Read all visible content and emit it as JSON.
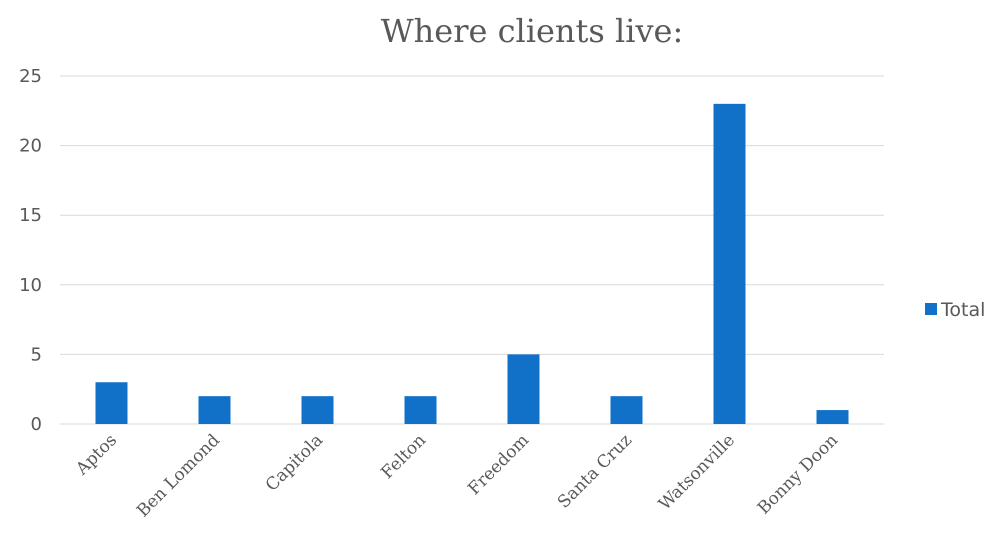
{
  "chart_data": {
    "type": "bar",
    "title": "Where clients live:",
    "categories": [
      "Aptos",
      "Ben Lomond",
      "Capitola",
      "Felton",
      "Freedom",
      "Santa Cruz",
      "Watsonville",
      "Bonny Doon"
    ],
    "series": [
      {
        "name": "Total",
        "values": [
          3,
          2,
          2,
          2,
          5,
          2,
          23,
          1
        ]
      }
    ],
    "ylim": [
      0,
      25
    ],
    "yticks": [
      0,
      5,
      10,
      15,
      20,
      25
    ],
    "xlabel": "",
    "ylabel": "",
    "grid": true,
    "legend_position": "right",
    "colors": {
      "bar": "#1170c8",
      "grid": "#d9d9d9",
      "text": "#595959"
    }
  }
}
